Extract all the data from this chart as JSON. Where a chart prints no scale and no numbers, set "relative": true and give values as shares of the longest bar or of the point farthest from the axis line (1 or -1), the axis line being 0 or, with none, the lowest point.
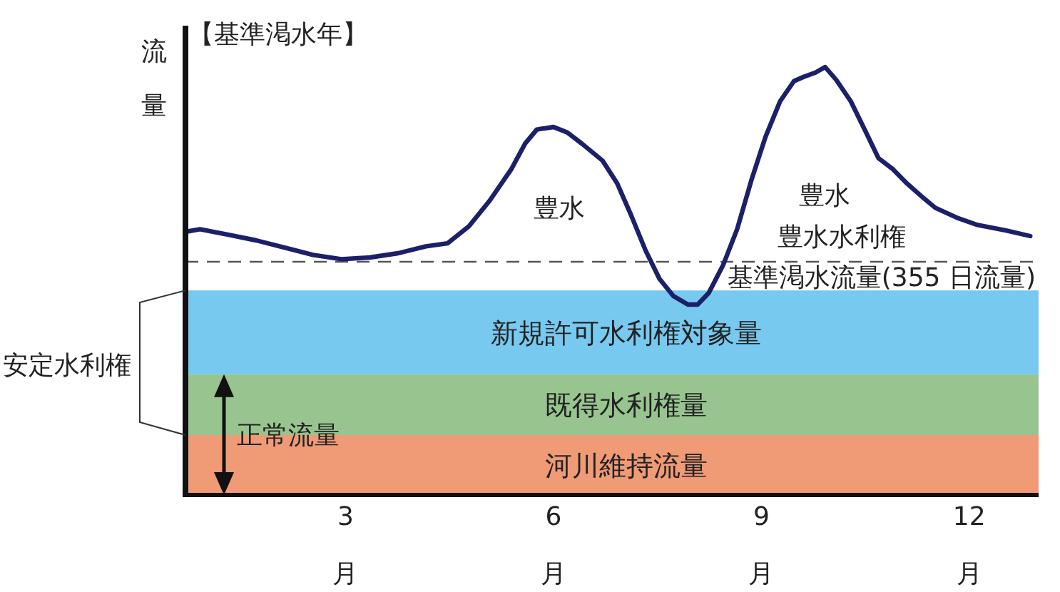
{
  "chart_data": {
    "type": "line",
    "title": "【基準渇水年】",
    "ylabel": "流量",
    "relative": true,
    "grid": false,
    "marker": "none",
    "line_style": "solid",
    "x": [
      0.69,
      0.9,
      1.31,
      1.71,
      2.12,
      2.53,
      2.94,
      3.35,
      3.76,
      4.16,
      4.47,
      4.78,
      5.08,
      5.39,
      5.59,
      5.76,
      6.0,
      6.2,
      6.41,
      6.71,
      6.92,
      7.12,
      7.33,
      7.53,
      7.73,
      7.94,
      8.08,
      8.24,
      8.45,
      8.65,
      8.86,
      9.06,
      9.27,
      9.47,
      9.61,
      9.78,
      9.92,
      10.08,
      10.29,
      10.49,
      10.69,
      10.9,
      11.1,
      11.31,
      11.51,
      11.82,
      12.12,
      12.53,
      12.88
    ],
    "xlim": [
      0.69,
      13
    ],
    "xticks": [
      {
        "value": 3,
        "label": "3月"
      },
      {
        "value": 6,
        "label": "6月"
      },
      {
        "value": 9,
        "label": "9月"
      },
      {
        "value": 12,
        "label": "12月"
      }
    ],
    "series": [
      {
        "color": "#1b2068",
        "values": [
          0.615,
          0.621,
          0.608,
          0.595,
          0.578,
          0.561,
          0.551,
          0.555,
          0.565,
          0.581,
          0.588,
          0.628,
          0.688,
          0.761,
          0.821,
          0.854,
          0.86,
          0.847,
          0.821,
          0.781,
          0.728,
          0.654,
          0.571,
          0.505,
          0.465,
          0.445,
          0.445,
          0.472,
          0.538,
          0.621,
          0.738,
          0.837,
          0.92,
          0.967,
          0.977,
          0.987,
          1.0,
          0.97,
          0.92,
          0.854,
          0.787,
          0.761,
          0.728,
          0.698,
          0.671,
          0.648,
          0.631,
          0.618,
          0.605
        ]
      }
    ],
    "bands": [
      {
        "axis": "y",
        "from": 0,
        "to": 0.14,
        "label": "河川維持流量",
        "color": "#f09a76"
      },
      {
        "axis": "y",
        "from": 0.14,
        "to": 0.282,
        "label": "既得水利権量",
        "color": "#98c48f"
      },
      {
        "axis": "y",
        "from": 0.282,
        "to": 0.478,
        "label": "新規許可水利権対象量",
        "color": "#78c9f0"
      }
    ],
    "ref_lines": [
      {
        "axis": "y",
        "value": 0.545,
        "label": "基準渇水流量(355 日流量)",
        "color": "#555555",
        "line_style": "dashed"
      }
    ],
    "annotations": [
      "豊水",
      "豊水",
      "豊水水利権",
      "安定水利権",
      "正常流量"
    ]
  }
}
